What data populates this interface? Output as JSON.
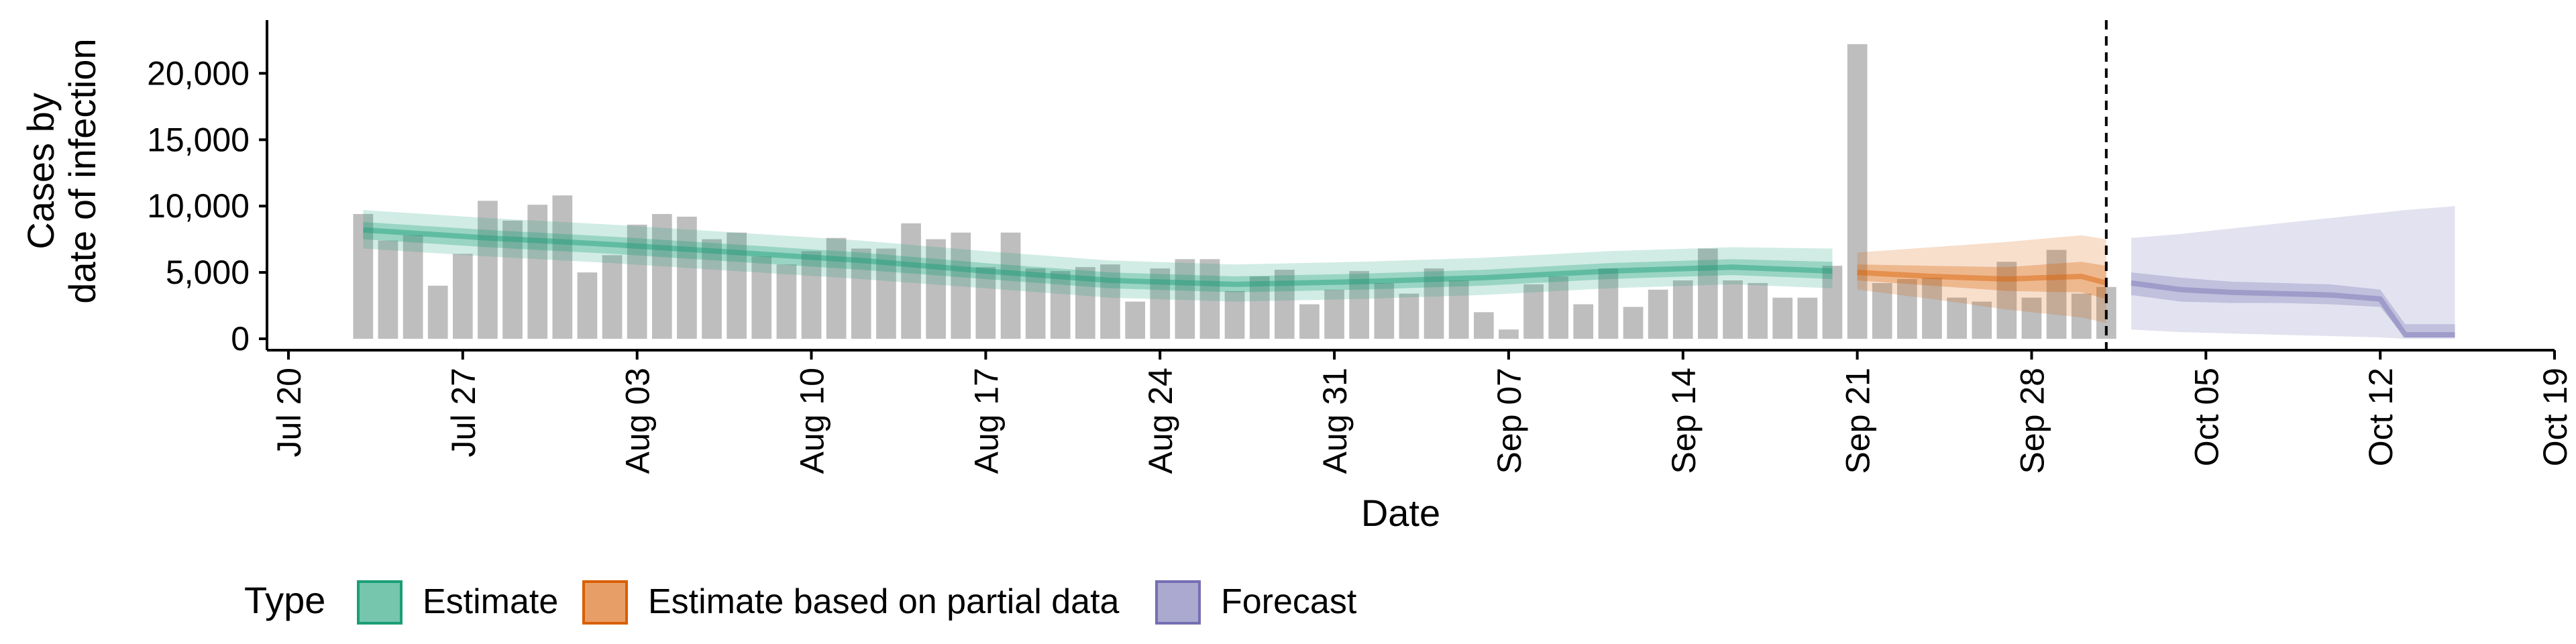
{
  "chart_data": {
    "type": "bar",
    "ylabel_lines": [
      "Cases by",
      "date of infection"
    ],
    "xlabel": "Date",
    "y_ticks": [
      0,
      5000,
      10000,
      15000,
      20000
    ],
    "y_tick_labels": [
      "0",
      "5,000",
      "10,000",
      "15,000",
      "20,000"
    ],
    "ylim": [
      0,
      23000
    ],
    "x_tick_labels": [
      "Jul 20",
      "Jul 27",
      "Aug 03",
      "Aug 10",
      "Aug 17",
      "Aug 24",
      "Aug 31",
      "Sep 07",
      "Sep 14",
      "Sep 21",
      "Sep 28",
      "Oct 05",
      "Oct 12",
      "Oct 19"
    ],
    "x_tick_dates": [
      "2020-07-20",
      "2020-07-27",
      "2020-08-03",
      "2020-08-10",
      "2020-08-17",
      "2020-08-24",
      "2020-08-31",
      "2020-09-07",
      "2020-09-14",
      "2020-09-21",
      "2020-09-28",
      "2020-10-05",
      "2020-10-12",
      "2020-10-19"
    ],
    "xlim": [
      "2020-07-20",
      "2020-10-19"
    ],
    "bar_start_date": "2020-07-23",
    "bar_values": [
      9400,
      7400,
      7800,
      4000,
      6400,
      10400,
      8900,
      10100,
      10800,
      5000,
      6300,
      8600,
      9400,
      9200,
      7500,
      8000,
      6200,
      5600,
      6600,
      7600,
      6800,
      6800,
      8700,
      7500,
      8000,
      5400,
      8000,
      5300,
      5100,
      5400,
      5600,
      2800,
      5300,
      6000,
      6000,
      3600,
      4700,
      5200,
      2600,
      3700,
      5100,
      4200,
      3400,
      5300,
      4400,
      2000,
      700,
      4100,
      4700,
      2600,
      5300,
      2400,
      3700,
      4400,
      6800,
      4400,
      4200,
      3100,
      3100,
      5500,
      22200,
      4200,
      4500,
      4600,
      3100,
      2800,
      5800,
      3100,
      6700,
      3400,
      3900
    ],
    "estimate_vline_date": "2020-10-01",
    "series": [
      {
        "name": "Estimate",
        "color": "#1B9E77",
        "x": [
          "2020-07-23",
          "2020-07-28",
          "2020-08-02",
          "2020-08-07",
          "2020-08-12",
          "2020-08-17",
          "2020-08-22",
          "2020-08-27",
          "2020-09-01",
          "2020-09-06",
          "2020-09-11",
          "2020-09-16",
          "2020-09-20"
        ],
        "median": [
          8200,
          7600,
          7100,
          6500,
          5900,
          5100,
          4400,
          4100,
          4300,
          4600,
          5100,
          5400,
          5100
        ],
        "lower_50": [
          7500,
          6900,
          6400,
          5800,
          5200,
          4500,
          3800,
          3500,
          3700,
          4000,
          4500,
          4800,
          4500
        ],
        "upper_50": [
          8800,
          8200,
          7700,
          7100,
          6500,
          5700,
          5000,
          4700,
          4900,
          5200,
          5700,
          6000,
          5800
        ],
        "lower_90": [
          6800,
          6200,
          5700,
          5100,
          4500,
          3800,
          3100,
          2800,
          3000,
          3300,
          3800,
          4100,
          3800
        ],
        "upper_90": [
          9700,
          9100,
          8600,
          8000,
          7400,
          6600,
          5900,
          5600,
          5800,
          6100,
          6600,
          6900,
          6800
        ]
      },
      {
        "name": "Estimate based on partial data",
        "color": "#D95F02",
        "x": [
          "2020-09-21",
          "2020-09-24",
          "2020-09-27",
          "2020-09-30",
          "2020-10-01"
        ],
        "median": [
          5000,
          4700,
          4500,
          4700,
          4200
        ],
        "lower_50": [
          4400,
          4000,
          3600,
          3500,
          3000
        ],
        "upper_50": [
          5600,
          5500,
          5400,
          5800,
          5500
        ],
        "lower_90": [
          3700,
          3000,
          2200,
          1600,
          1200
        ],
        "upper_90": [
          6500,
          6900,
          7300,
          7800,
          7500
        ]
      },
      {
        "name": "Forecast",
        "color": "#7570B3",
        "x": [
          "2020-10-02",
          "2020-10-04",
          "2020-10-06",
          "2020-10-08",
          "2020-10-10",
          "2020-10-12",
          "2020-10-13",
          "2020-10-15"
        ],
        "median": [
          4200,
          3700,
          3500,
          3400,
          3300,
          3000,
          300,
          300
        ],
        "lower_50": [
          3300,
          2800,
          2700,
          2700,
          2600,
          2400,
          100,
          100
        ],
        "upper_50": [
          5000,
          4600,
          4300,
          4200,
          4100,
          3700,
          1100,
          1100
        ],
        "lower_90": [
          700,
          500,
          400,
          300,
          200,
          100,
          0,
          0
        ],
        "upper_90": [
          7600,
          7900,
          8300,
          8700,
          9100,
          9500,
          9700,
          10000
        ]
      }
    ],
    "legend": {
      "title": "Type",
      "placement": "bottom-left",
      "entries": [
        "Estimate",
        "Estimate based on partial data",
        "Forecast"
      ]
    }
  },
  "colors": {
    "bar": "#BEBEBE",
    "axis": "#000000",
    "estimate": "#1B9E77",
    "partial": "#D95F02",
    "forecast": "#7570B3"
  }
}
